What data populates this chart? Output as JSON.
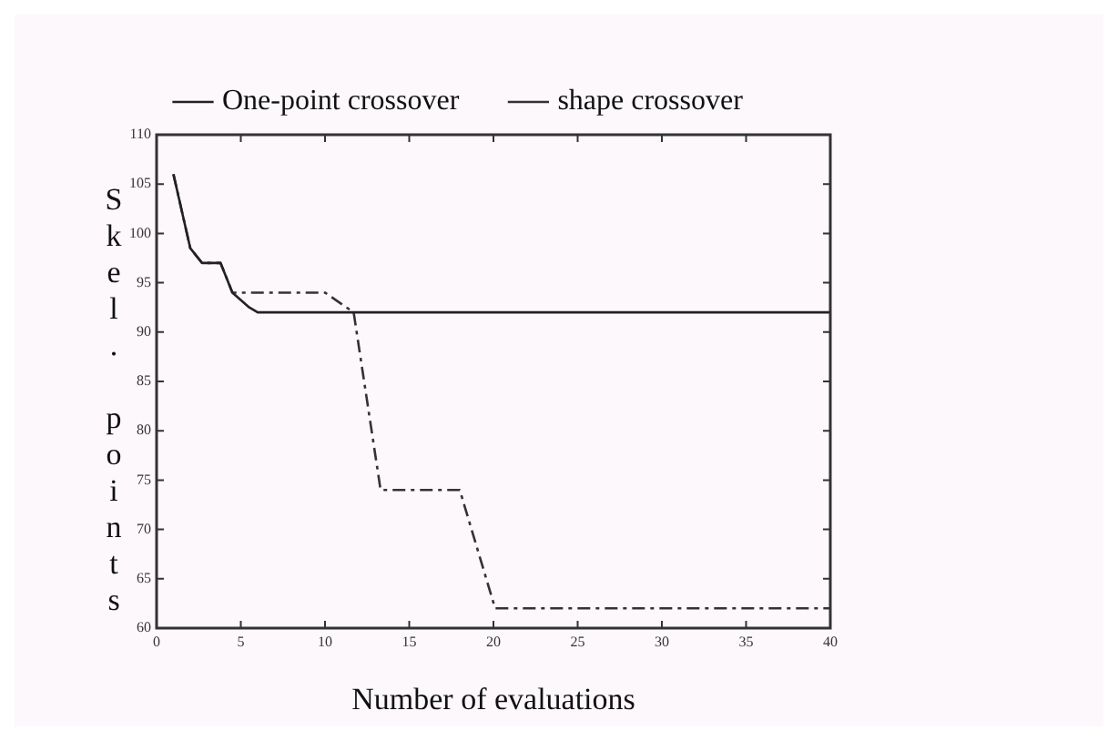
{
  "chart_data": {
    "type": "line",
    "xlabel": "Number of evaluations",
    "ylabel": "Skel. points",
    "xlim": [
      0,
      40
    ],
    "xticks": [
      0,
      5,
      10,
      15,
      20,
      25,
      30,
      35,
      40
    ],
    "ylim": [
      60,
      110
    ],
    "yticks": [
      60,
      65,
      70,
      75,
      80,
      85,
      90,
      95,
      100,
      105,
      110
    ],
    "grid": false,
    "legend": "top",
    "marker": "none",
    "series": [
      {
        "name": "One-point crossover",
        "color": "#222222",
        "line_style": "solid",
        "x": [
          1,
          2,
          2.7,
          3.8,
          4.5,
          5.5,
          6,
          40
        ],
        "values": [
          106,
          98.5,
          97,
          97,
          94,
          92.5,
          92,
          92
        ]
      },
      {
        "name": "shape crossover",
        "color": "#333333",
        "line_style": "dashed",
        "x": [
          1,
          2,
          2.7,
          3.8,
          4.5,
          5,
          10,
          11.7,
          13.3,
          18,
          20.1,
          40
        ],
        "values": [
          106,
          98.5,
          97,
          97,
          94,
          94,
          94,
          92,
          74,
          74,
          62,
          62
        ]
      }
    ]
  }
}
